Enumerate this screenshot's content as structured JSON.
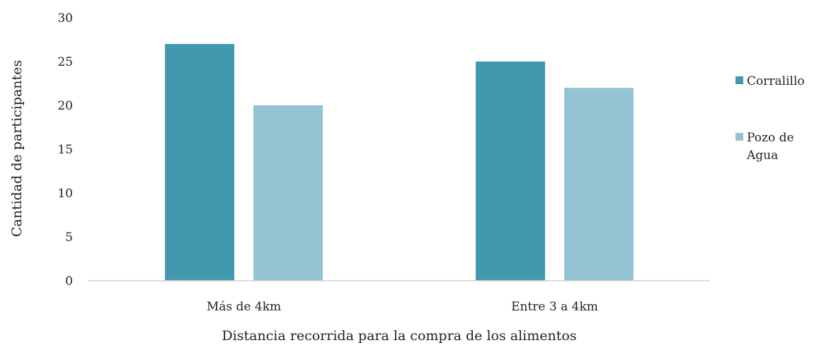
{
  "chart_data": {
    "type": "bar",
    "title": "",
    "xlabel": "Distancia recorrida para la compra de los alimentos",
    "ylabel": "Cantidad de participantes",
    "ylim": [
      0,
      30
    ],
    "yticks": [
      "0",
      "5",
      "10",
      "15",
      "20",
      "25",
      "30"
    ],
    "grid": false,
    "legend_position": "right",
    "categories": [
      "Más de 4km",
      "Entre 3 a 4km"
    ],
    "series": [
      {
        "name": "Corralillo",
        "color": "#4298ae",
        "values": [
          27,
          25
        ]
      },
      {
        "name": "Pozo de Agua",
        "name_lines": [
          "Pozo de",
          "Agua"
        ],
        "color": "#94c4d4",
        "values": [
          20,
          22
        ]
      }
    ]
  }
}
